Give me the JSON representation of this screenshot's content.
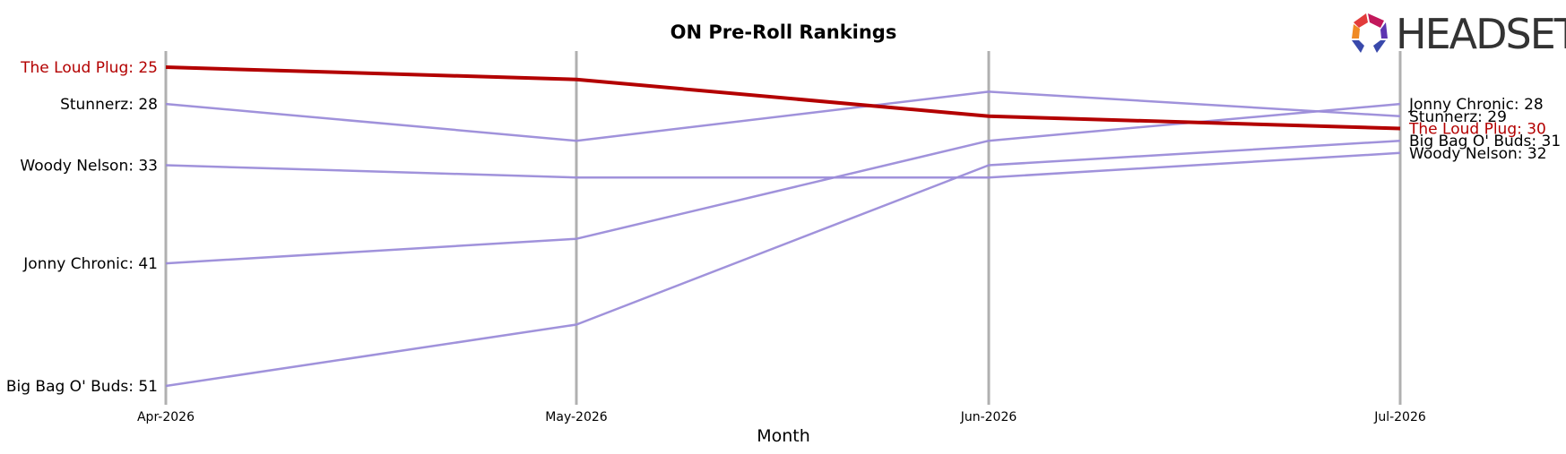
{
  "chart_data": {
    "type": "line",
    "title": "ON Pre-Roll Rankings",
    "xlabel": "Month",
    "ylabel": "",
    "categories": [
      "Apr-2026",
      "May-2026",
      "Jun-2026",
      "Jul-2026"
    ],
    "y_inverted": true,
    "ylim": [
      24,
      53
    ],
    "grid": "vertical lines at each month",
    "series": [
      {
        "name": "Stunnerz",
        "values": [
          28,
          31,
          27,
          29
        ],
        "color": "#9b8cd9",
        "highlight": false
      },
      {
        "name": "Woody Nelson",
        "values": [
          33,
          34,
          34,
          32
        ],
        "color": "#9b8cd9",
        "highlight": false
      },
      {
        "name": "Jonny Chronic",
        "values": [
          41,
          39,
          31,
          28
        ],
        "color": "#9b8cd9",
        "highlight": false
      },
      {
        "name": "Big Bag O' Buds",
        "values": [
          51,
          46,
          33,
          31
        ],
        "color": "#9b8cd9",
        "highlight": false
      },
      {
        "name": "The Loud Plug",
        "values": [
          25,
          26,
          29,
          30
        ],
        "color": "#b30000",
        "highlight": true
      }
    ],
    "start_labels": [
      {
        "text": "The Loud Plug: 25",
        "series": "The Loud Plug"
      },
      {
        "text": "Stunnerz: 28",
        "series": "Stunnerz"
      },
      {
        "text": "Woody Nelson: 33",
        "series": "Woody Nelson"
      },
      {
        "text": "Jonny Chronic: 41",
        "series": "Jonny Chronic"
      },
      {
        "text": "Big Bag O' Buds: 51",
        "series": "Big Bag O' Buds"
      }
    ],
    "end_labels": [
      {
        "text": "Jonny Chronic: 28",
        "series": "Jonny Chronic"
      },
      {
        "text": "Stunnerz: 29",
        "series": "Stunnerz"
      },
      {
        "text": "The Loud Plug: 30",
        "series": "The Loud Plug"
      },
      {
        "text": "Big Bag O' Buds: 31",
        "series": "Big Bag O' Buds"
      },
      {
        "text": "Woody Nelson: 32",
        "series": "Woody Nelson"
      }
    ]
  },
  "logo": {
    "text": "HEADSET",
    "colors": [
      "#e23b3b",
      "#f08a24",
      "#c2185b",
      "#3949ab",
      "#5e35b1"
    ]
  },
  "colors": {
    "grid": "#b0b0b0",
    "highlight": "#b30000",
    "other": "#9b8cd9",
    "text": "#000000"
  }
}
